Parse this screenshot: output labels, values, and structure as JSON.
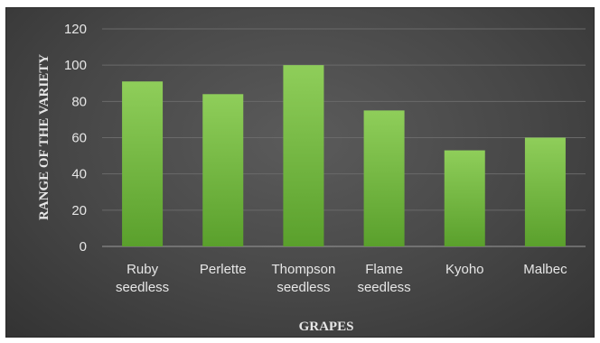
{
  "chart_data": {
    "type": "bar",
    "categories": [
      [
        "Ruby",
        "seedless"
      ],
      [
        "Perlette"
      ],
      [
        "Thompson",
        "seedless"
      ],
      [
        "Flame",
        "seedless"
      ],
      [
        "Kyoho"
      ],
      [
        "Malbec"
      ]
    ],
    "values": [
      91,
      84,
      100,
      75,
      53,
      60
    ],
    "xlabel": "GRAPES",
    "ylabel": "RANGE OF THE VARIETY",
    "ylim": [
      0,
      120
    ],
    "yticks": [
      0,
      20,
      40,
      60,
      80,
      100,
      120
    ],
    "grid": true,
    "legend": "none",
    "colors": {
      "bar_top": "#8fce5a",
      "bar_bottom": "#5aa02c",
      "background": "#474747",
      "grid": "#6a6a6a",
      "text": "#e6e6e6"
    }
  }
}
